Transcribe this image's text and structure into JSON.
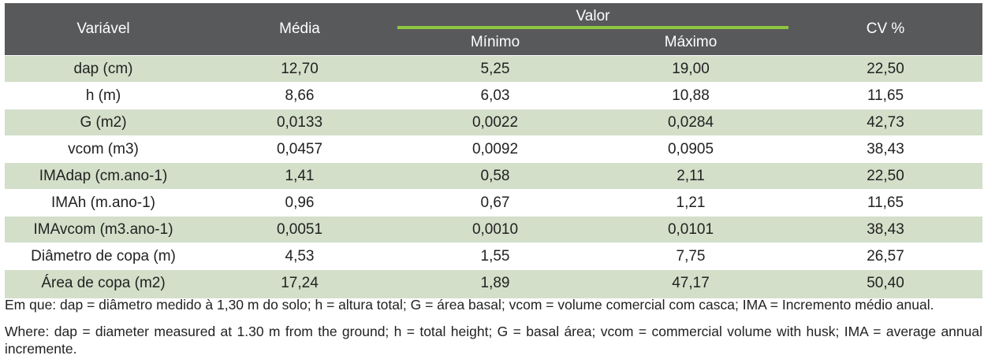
{
  "table": {
    "headers": {
      "variable": "Variável",
      "mean": "Média",
      "value_group": "Valor",
      "min": "Mínimo",
      "max": "Máximo",
      "cv": "CV %"
    },
    "rows": [
      {
        "variable": "dap (cm)",
        "mean": "12,70",
        "min": "5,25",
        "max": "19,00",
        "cv": "22,50"
      },
      {
        "variable": "h (m)",
        "mean": "8,66",
        "min": "6,03",
        "max": "10,88",
        "cv": "11,65"
      },
      {
        "variable": "G (m2)",
        "mean": "0,0133",
        "min": "0,0022",
        "max": "0,0284",
        "cv": "42,73"
      },
      {
        "variable": "vcom (m3)",
        "mean": "0,0457",
        "min": "0,0092",
        "max": "0,0905",
        "cv": "38,43"
      },
      {
        "variable": "IMAdap (cm.ano-1)",
        "mean": "1,41",
        "min": "0,58",
        "max": "2,11",
        "cv": "22,50"
      },
      {
        "variable": "IMAh (m.ano-1)",
        "mean": "0,96",
        "min": "0,67",
        "max": "1,21",
        "cv": "11,65"
      },
      {
        "variable": "IMAvcom (m3.ano-1)",
        "mean": "0,0051",
        "min": "0,0010",
        "max": "0,0101",
        "cv": "38,43"
      },
      {
        "variable": "Diâmetro de copa (m)",
        "mean": "4,53",
        "min": "1,55",
        "max": "7,75",
        "cv": "26,57"
      },
      {
        "variable": "Área de copa (m2)",
        "mean": "17,24",
        "min": "1,89",
        "max": "47,17",
        "cv": "50,40"
      }
    ]
  },
  "notes": {
    "pt": "Em que: dap = diâmetro medido à 1,30 m do solo; h = altura total; G = área basal; vcom = volume comercial com casca; IMA = Incremento médio anual.",
    "en": "Where: dap = diameter measured at 1.30 m from the ground; h = total height; G = basal área; vcom = commercial volume with husk; IMA = average annual incremente."
  },
  "colors": {
    "header_bg": "#58595b",
    "header_accent": "#8dc63f",
    "row_shade": "#d3dfc9"
  }
}
